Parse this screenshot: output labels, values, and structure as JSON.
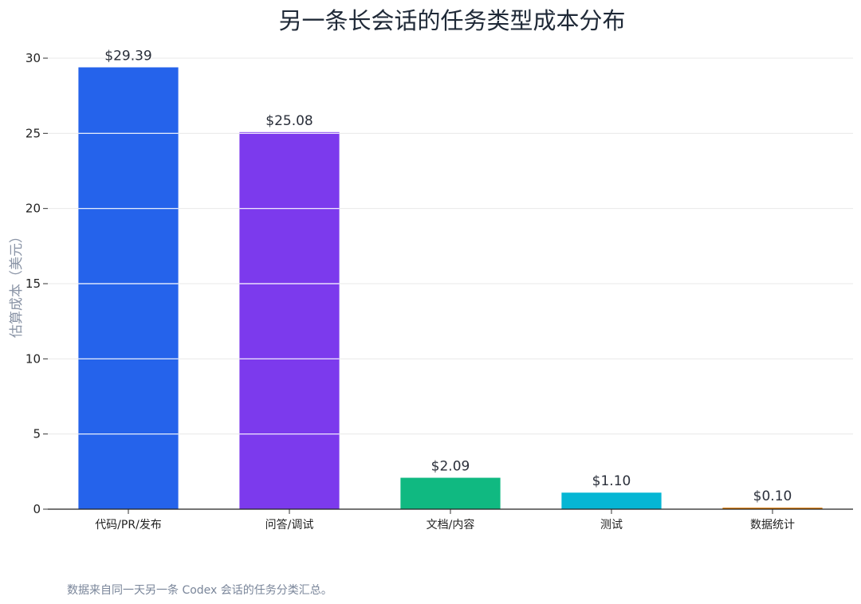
{
  "chart_data": {
    "type": "bar",
    "title": "另一条长会话的任务类型成本分布",
    "xlabel": "",
    "ylabel": "估算成本（美元）",
    "categories": [
      "代码/PR/发布",
      "问答/调试",
      "文档/内容",
      "测试",
      "数据统计"
    ],
    "values": [
      29.39,
      25.08,
      2.09,
      1.1,
      0.1
    ],
    "data_labels": [
      "$29.39",
      "$25.08",
      "$2.09",
      "$1.10",
      "$0.10"
    ],
    "colors": [
      "#2563eb",
      "#7c3aed",
      "#10b981",
      "#06b6d4",
      "#d97706"
    ],
    "ylim": [
      0,
      30
    ],
    "yticks": [
      0,
      5,
      10,
      15,
      20,
      25,
      30
    ],
    "grid": true,
    "legend": "none"
  },
  "footnote": "数据来自同一天另一条 Codex 会话的任务分类汇总。"
}
